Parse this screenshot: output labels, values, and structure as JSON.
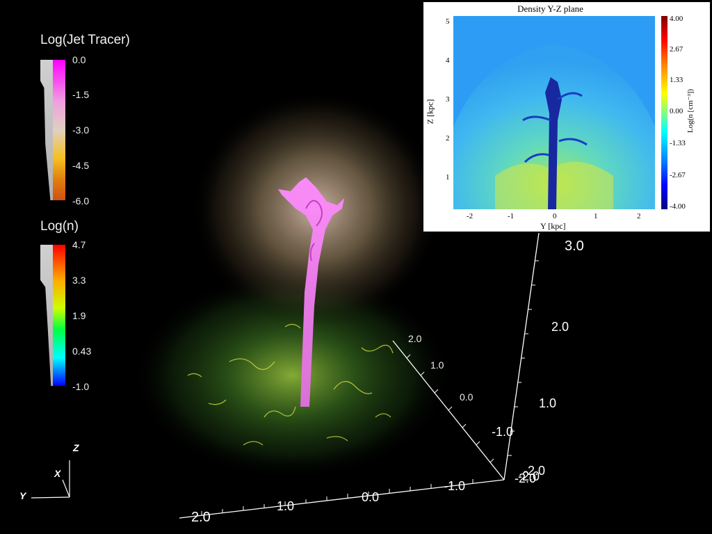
{
  "jet_colorbar": {
    "title": "Log(Jet Tracer)",
    "ticks": [
      "0.0",
      "-1.5",
      "-3.0",
      "-4.5",
      "-6.0"
    ],
    "colors": [
      "#ff00ff",
      "#f0a0e0",
      "#e0d0c0",
      "#f5c020",
      "#e08010",
      "#d05010"
    ]
  },
  "n_colorbar": {
    "title": "Log(n)",
    "ticks": [
      "4.7",
      "3.3",
      "1.9",
      "0.43",
      "-1.0"
    ],
    "colors": [
      "#ff0000",
      "#ffaa00",
      "#ccff00",
      "#00ff40",
      "#00ffff",
      "#0000ff"
    ]
  },
  "orientation_axes": {
    "z": "Z",
    "x": "X",
    "y": "Y"
  },
  "cube_axes": {
    "vertical_ticks": [
      "3.0",
      "2.0",
      "1.0",
      "-1.0",
      "-2.0"
    ],
    "diagonal_ticks": [
      "2.0",
      "1.0",
      "0.0",
      "-2.0"
    ],
    "bottom_ticks": [
      "2.0",
      "1.0",
      "0.0",
      "-1.0",
      "-2.0"
    ]
  },
  "inset": {
    "title": "Density Y-Z plane",
    "xlabel": "Y [kpc]",
    "ylabel": "Z [kpc]",
    "xticks": [
      "-2",
      "-1",
      "0",
      "1",
      "2"
    ],
    "yticks": [
      "5",
      "4",
      "3",
      "2",
      "1"
    ],
    "colorbar_label": "Log(n [cm⁻³])",
    "colorbar_ticks": [
      "4.00",
      "2.67",
      "1.33",
      "0.00",
      "-1.33",
      "-2.67",
      "-4.00"
    ],
    "colorbar_colors": [
      "#800000",
      "#ff0000",
      "#ff8000",
      "#ffff00",
      "#80ff80",
      "#00ffff",
      "#0080ff",
      "#0000ff",
      "#000080"
    ]
  }
}
